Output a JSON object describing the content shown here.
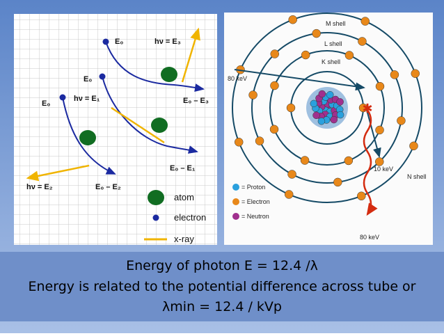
{
  "left_diagram": {
    "labels": [
      "E₀",
      "hν = E₃",
      "E₀",
      "hν = E₁",
      "E₀ – E₃",
      "E₀",
      "E₀ – E₁",
      "hν = E₂",
      "E₀ – E₂"
    ],
    "legend": [
      "atom",
      "electron",
      "x-ray"
    ]
  },
  "right_diagram": {
    "shells": [
      "M shell",
      "L shell",
      "K shell",
      "N shell"
    ],
    "energies": [
      "80 keV",
      "10 keV",
      "80 keV"
    ],
    "legend": [
      "= Proton",
      "= Electron",
      "= Neutron"
    ]
  },
  "caption": [
    "Energy of photon E = 12.4 /λ",
    "Energy is related to the potential difference across tube or",
    "λmin = 12.4 / kVp"
  ]
}
